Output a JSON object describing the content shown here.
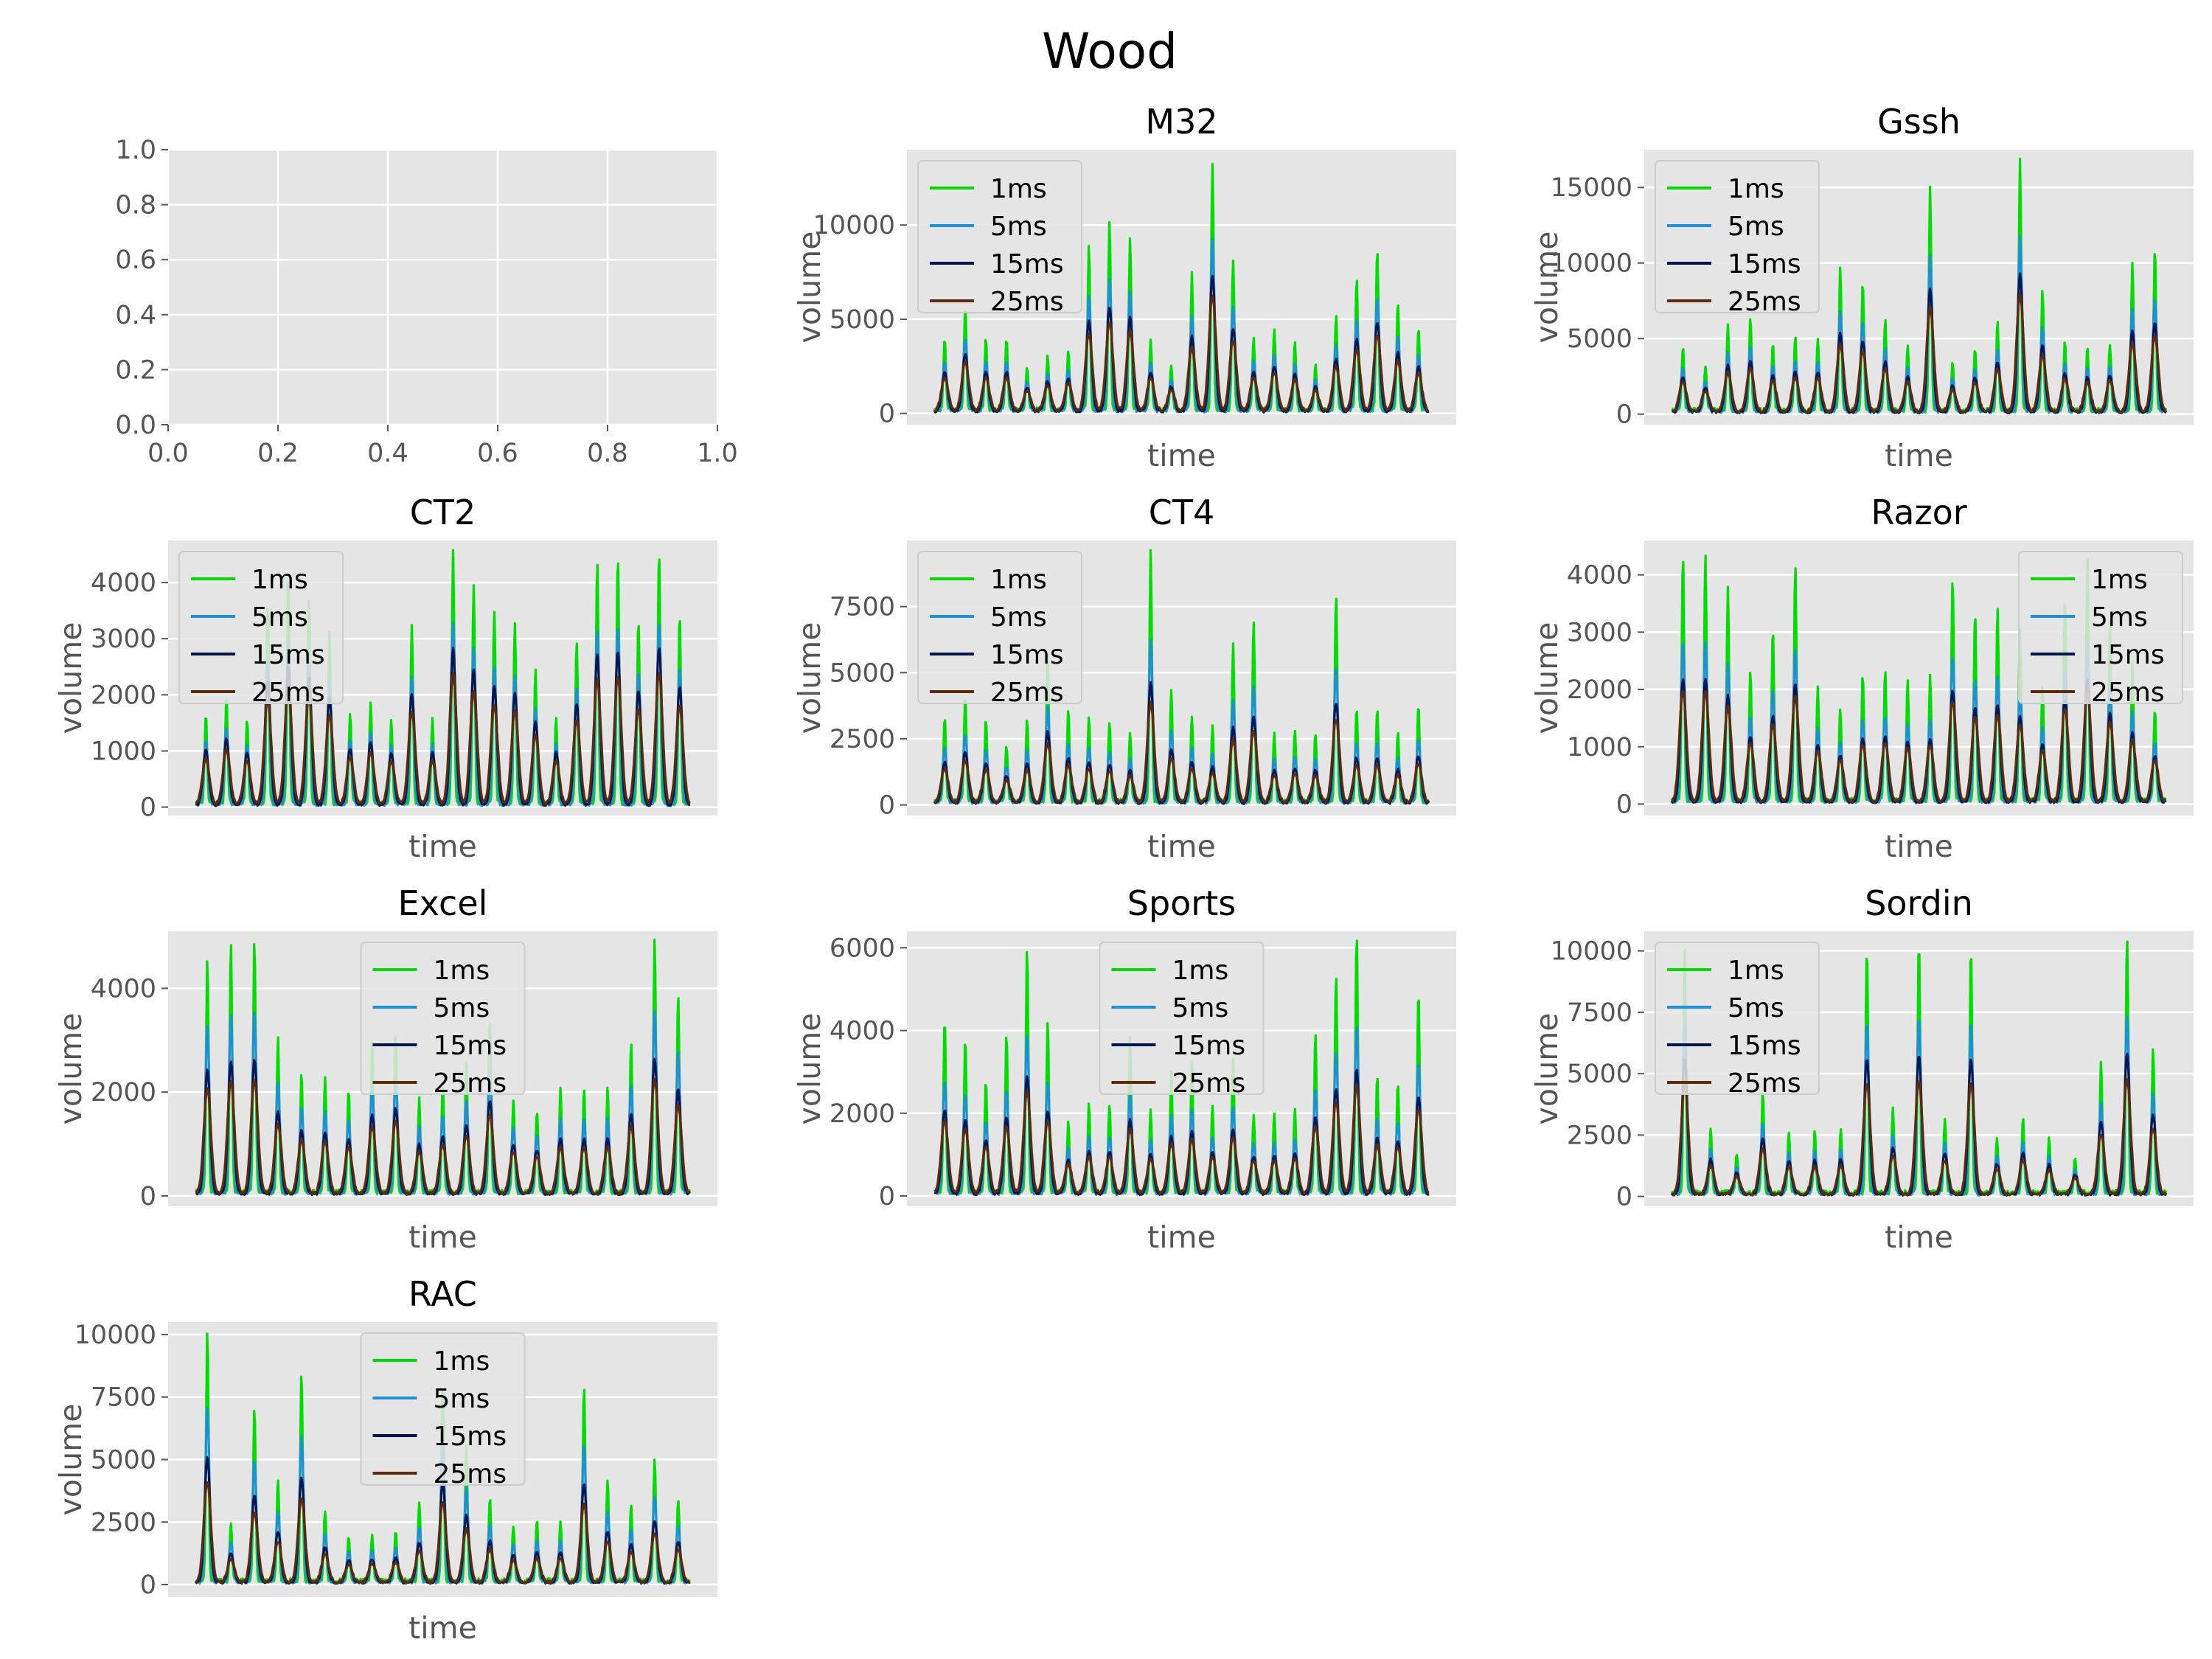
{
  "figure": {
    "title": "Wood"
  },
  "chart_data": [
    {
      "type": "line",
      "title": "",
      "xlabel": "",
      "ylabel": "",
      "xlim": [
        0,
        1
      ],
      "ylim": [
        0,
        1
      ],
      "x_ticks": [
        0.0,
        0.2,
        0.4,
        0.6,
        0.8,
        1.0
      ],
      "y_ticks": [
        0.0,
        0.2,
        0.4,
        0.6,
        0.8,
        1.0
      ],
      "series": []
    },
    {
      "type": "line",
      "title": "M32",
      "xlabel": "time",
      "ylabel": "volume",
      "ylim": [
        -600,
        14000
      ],
      "y_ticks": [
        0,
        5000,
        10000
      ],
      "legend": "upper-left",
      "grid": true,
      "peaks": [
        3700,
        5500,
        3800,
        3800,
        2300,
        2900,
        3100,
        8700,
        10100,
        9000,
        3700,
        2400,
        7200,
        13100,
        8000,
        3800,
        4300,
        3500,
        2300,
        5000,
        7000,
        8600,
        5700,
        4300
      ],
      "series": [
        {
          "name": "1ms",
          "scale": 1.0,
          "color": "#00dd00"
        },
        {
          "name": "5ms",
          "scale": 0.7,
          "color": "#1f8fd6"
        },
        {
          "name": "15ms",
          "scale": 0.55,
          "color": "#041752"
        },
        {
          "name": "25ms",
          "scale": 0.47,
          "color": "#5c2c0a"
        }
      ]
    },
    {
      "type": "line",
      "title": "Gssh",
      "xlabel": "time",
      "ylabel": "volume",
      "ylim": [
        -700,
        17500
      ],
      "y_ticks": [
        0,
        5000,
        10000,
        15000
      ],
      "legend": "upper-left",
      "grid": true,
      "peaks": [
        4300,
        2900,
        5600,
        6100,
        4300,
        4800,
        4800,
        9400,
        8500,
        6000,
        4200,
        14700,
        3100,
        4100,
        6000,
        16500,
        8000,
        4600,
        4200,
        4400,
        9700,
        10700
      ],
      "series": [
        {
          "name": "1ms",
          "scale": 1.0,
          "color": "#00dd00"
        },
        {
          "name": "5ms",
          "scale": 0.7,
          "color": "#1f8fd6"
        },
        {
          "name": "15ms",
          "scale": 0.55,
          "color": "#041752"
        },
        {
          "name": "25ms",
          "scale": 0.47,
          "color": "#5c2c0a"
        }
      ]
    },
    {
      "type": "line",
      "title": "CT2",
      "xlabel": "time",
      "ylabel": "volume",
      "ylim": [
        -150,
        4750
      ],
      "y_ticks": [
        0,
        1000,
        2000,
        3000,
        4000
      ],
      "legend": "upper-left",
      "grid": true,
      "peaks": [
        1600,
        1900,
        1500,
        3600,
        4000,
        3700,
        3100,
        1600,
        1800,
        1500,
        3200,
        1500,
        4500,
        3900,
        3400,
        3200,
        2400,
        1500,
        2900,
        4300,
        4400,
        3300,
        4500,
        3400
      ],
      "series": [
        {
          "name": "1ms",
          "scale": 1.0,
          "color": "#00dd00"
        },
        {
          "name": "5ms",
          "scale": 0.72,
          "color": "#1f8fd6"
        },
        {
          "name": "15ms",
          "scale": 0.62,
          "color": "#041752"
        },
        {
          "name": "25ms",
          "scale": 0.52,
          "color": "#5c2c0a"
        }
      ]
    },
    {
      "type": "line",
      "title": "CT4",
      "xlabel": "time",
      "ylabel": "volume",
      "ylim": [
        -400,
        10000
      ],
      "y_ticks": [
        0,
        2500,
        5000,
        7500
      ],
      "legend": "upper-left",
      "grid": true,
      "peaks": [
        3200,
        4000,
        3100,
        2100,
        3100,
        5600,
        3500,
        3200,
        3000,
        2500,
        9400,
        4200,
        3200,
        2800,
        5900,
        6800,
        2600,
        2700,
        2600,
        7900,
        3500,
        3500,
        2600,
        3700
      ],
      "series": [
        {
          "name": "1ms",
          "scale": 1.0,
          "color": "#00dd00"
        },
        {
          "name": "5ms",
          "scale": 0.65,
          "color": "#1f8fd6"
        },
        {
          "name": "15ms",
          "scale": 0.48,
          "color": "#041752"
        },
        {
          "name": "25ms",
          "scale": 0.4,
          "color": "#5c2c0a"
        }
      ]
    },
    {
      "type": "line",
      "title": "Razor",
      "xlabel": "time",
      "ylabel": "volume",
      "ylim": [
        -200,
        4600
      ],
      "y_ticks": [
        0,
        1000,
        2000,
        3000,
        4000
      ],
      "legend": "upper-right",
      "grid": true,
      "peaks": [
        4300,
        4300,
        3700,
        2300,
        3000,
        4100,
        2000,
        1600,
        2200,
        2300,
        2100,
        2200,
        3900,
        3300,
        3400,
        3000,
        2000,
        3600,
        4300,
        3100,
        2400,
        1600
      ],
      "series": [
        {
          "name": "1ms",
          "scale": 1.0,
          "color": "#00dd00"
        },
        {
          "name": "5ms",
          "scale": 0.65,
          "color": "#1f8fd6"
        },
        {
          "name": "15ms",
          "scale": 0.5,
          "color": "#041752"
        },
        {
          "name": "25ms",
          "scale": 0.45,
          "color": "#5c2c0a"
        }
      ]
    },
    {
      "type": "line",
      "title": "Excel",
      "xlabel": "time",
      "ylabel": "volume",
      "ylim": [
        -200,
        5100
      ],
      "y_ticks": [
        0,
        2000,
        4000
      ],
      "legend": "upper-center",
      "grid": true,
      "peaks": [
        4500,
        4800,
        4900,
        3000,
        2300,
        2200,
        2000,
        2900,
        3100,
        1800,
        2100,
        2500,
        3400,
        1800,
        1600,
        2000,
        2000,
        2000,
        2900,
        4900,
        3800
      ],
      "series": [
        {
          "name": "1ms",
          "scale": 1.0,
          "color": "#00dd00"
        },
        {
          "name": "5ms",
          "scale": 0.72,
          "color": "#1f8fd6"
        },
        {
          "name": "15ms",
          "scale": 0.53,
          "color": "#041752"
        },
        {
          "name": "25ms",
          "scale": 0.45,
          "color": "#5c2c0a"
        }
      ]
    },
    {
      "type": "line",
      "title": "Sports",
      "xlabel": "time",
      "ylabel": "volume",
      "ylim": [
        -250,
        6400
      ],
      "y_ticks": [
        0,
        2000,
        4000,
        6000
      ],
      "legend": "upper-center",
      "grid": true,
      "peaks": [
        4200,
        3700,
        2700,
        3800,
        5900,
        4200,
        1700,
        2100,
        2100,
        3700,
        2000,
        2900,
        3100,
        2100,
        3200,
        1900,
        1900,
        2000,
        3900,
        5300,
        6200,
        2800,
        2700,
        4900
      ],
      "series": [
        {
          "name": "1ms",
          "scale": 1.0,
          "color": "#00dd00"
        },
        {
          "name": "5ms",
          "scale": 0.65,
          "color": "#1f8fd6"
        },
        {
          "name": "15ms",
          "scale": 0.48,
          "color": "#041752"
        },
        {
          "name": "25ms",
          "scale": 0.42,
          "color": "#5c2c0a"
        }
      ]
    },
    {
      "type": "line",
      "title": "Sordin",
      "xlabel": "time",
      "ylabel": "volume",
      "ylim": [
        -400,
        10800
      ],
      "y_ticks": [
        0,
        2500,
        5000,
        7500,
        10000
      ],
      "legend": "upper-left",
      "grid": true,
      "peaks": [
        10000,
        2600,
        1600,
        4100,
        2500,
        2500,
        2600,
        10000,
        3500,
        10300,
        3000,
        10000,
        2300,
        3000,
        2200,
        1500,
        5400,
        10400,
        5900
      ],
      "series": [
        {
          "name": "1ms",
          "scale": 1.0,
          "color": "#00dd00"
        },
        {
          "name": "5ms",
          "scale": 0.7,
          "color": "#1f8fd6"
        },
        {
          "name": "15ms",
          "scale": 0.55,
          "color": "#041752"
        },
        {
          "name": "25ms",
          "scale": 0.45,
          "color": "#5c2c0a"
        }
      ]
    },
    {
      "type": "line",
      "title": "RAC",
      "xlabel": "time",
      "ylabel": "volume",
      "ylim": [
        -500,
        10500
      ],
      "y_ticks": [
        0,
        2500,
        5000,
        7500,
        10000
      ],
      "legend": "upper-center",
      "grid": true,
      "peaks": [
        10100,
        2300,
        7000,
        4100,
        8400,
        2800,
        1800,
        1900,
        2000,
        3200,
        8000,
        5400,
        3300,
        2200,
        2400,
        2400,
        7800,
        4100,
        3000,
        4900,
        3300
      ],
      "series": [
        {
          "name": "1ms",
          "scale": 1.0,
          "color": "#00dd00"
        },
        {
          "name": "5ms",
          "scale": 0.7,
          "color": "#1f8fd6"
        },
        {
          "name": "15ms",
          "scale": 0.5,
          "color": "#041752"
        },
        {
          "name": "25ms",
          "scale": 0.4,
          "color": "#5c2c0a"
        }
      ]
    }
  ]
}
